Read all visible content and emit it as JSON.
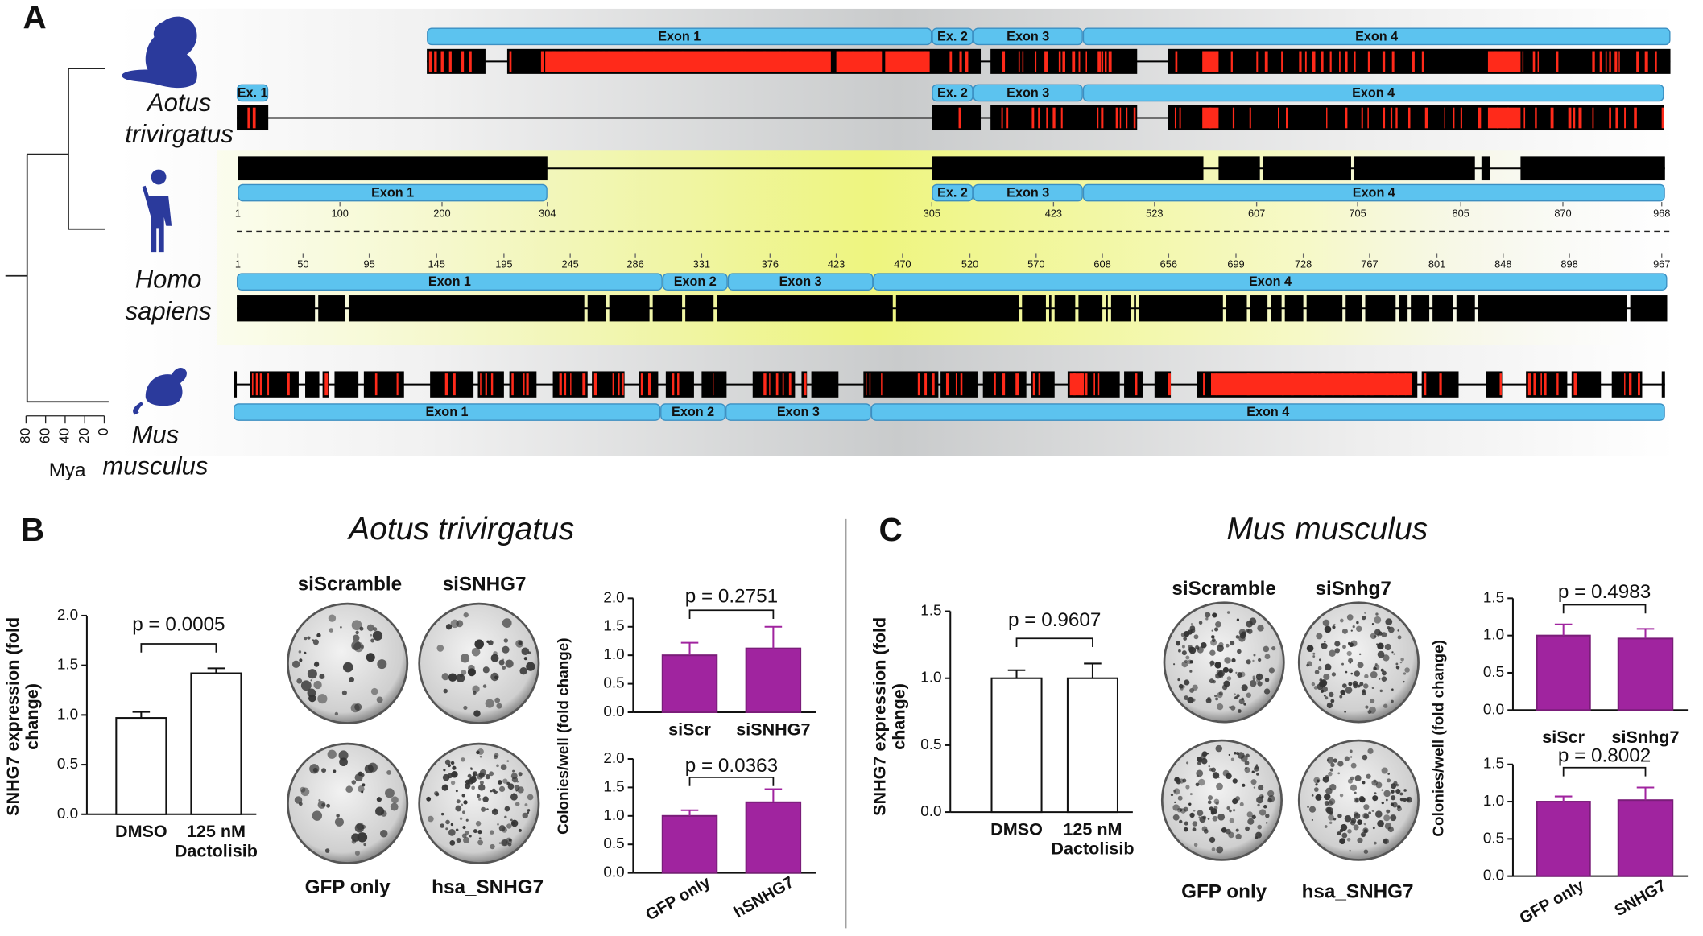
{
  "panel_labels": [
    "A",
    "B",
    "C"
  ],
  "panel_A": {
    "species": [
      [
        "Aotus",
        "trivirgatus"
      ],
      [
        "Homo",
        "sapiens"
      ],
      [
        "Mus",
        "musculus"
      ]
    ],
    "tracks": [
      {
        "exons": [
          "Exon 1",
          "Ex. 2",
          "Exon 3",
          "Exon 4"
        ]
      },
      {
        "exons": [
          "Ex. 1",
          "Ex. 2",
          "Exon 3",
          "Exon 4"
        ]
      },
      {
        "exons": [
          "Exon 1",
          "Ex. 2",
          "Exon 3",
          "Exon 4"
        ],
        "ruler": [
          1,
          100,
          200,
          304,
          305,
          423,
          523,
          607,
          705,
          805,
          870,
          968
        ]
      },
      {
        "exons": [
          "Exon 1",
          "Exon 2",
          "Exon 3",
          "Exon 4"
        ],
        "ruler": [
          1,
          50,
          95,
          145,
          195,
          245,
          286,
          331,
          376,
          423,
          470,
          520,
          570,
          608,
          656,
          699,
          728,
          767,
          801,
          848,
          898,
          967
        ]
      },
      {
        "exons": [
          "Exon 1",
          "Exon 2",
          "Exon 3",
          "Exon 4"
        ]
      }
    ],
    "timescale": {
      "ticks": [
        80,
        60,
        40,
        20,
        0
      ],
      "label": "Mya"
    }
  },
  "panel_B": {
    "title": "Aotus trivirgatus",
    "plates": [
      "siScramble",
      "siSNHG7",
      "GFP only",
      "hsa_SNHG7"
    ]
  },
  "panel_C": {
    "title": "Mus musculus",
    "plates": [
      "siScramble",
      "siSnhg7",
      "GFP only",
      "hsa_SNHG7"
    ]
  },
  "chart_data": [
    {
      "type": "bar",
      "annotation": "p = 0.0005",
      "ylabel": "SNHG7 expression (fold change)",
      "categories": [
        "DMSO",
        "125 nM Dactolisib"
      ],
      "values": [
        0.97,
        1.42
      ],
      "errors": [
        0.06,
        0.05
      ],
      "color": "#ffffff",
      "ylim": [
        0,
        2
      ],
      "yticks": [
        {
          "value": 0,
          "label": "0.0"
        },
        0.5,
        {
          "value": 1,
          "label": "1.0"
        },
        1.5,
        {
          "value": 2,
          "label": "2.0"
        }
      ]
    },
    {
      "type": "bar",
      "annotation": "p = 0.2751",
      "ylabel": "Colonies/well (fold change)",
      "categories": [
        "siScr",
        "siSNHG7"
      ],
      "values": [
        1.0,
        1.12
      ],
      "errors": [
        0.22,
        0.38
      ],
      "color": "#a0249f",
      "ylim": [
        0,
        2
      ],
      "yticks": [
        {
          "value": 0,
          "label": "0.0"
        },
        0.5,
        {
          "value": 1,
          "label": "1.0"
        },
        1.5,
        {
          "value": 2,
          "label": "2.0"
        }
      ]
    },
    {
      "type": "bar",
      "annotation": "p = 0.0363",
      "categories": [
        "GFP only",
        "hSNHG7"
      ],
      "values": [
        1.0,
        1.24
      ],
      "errors": [
        0.1,
        0.23
      ],
      "color": "#a0249f",
      "ylim": [
        0,
        2
      ],
      "yticks": [
        {
          "value": 0,
          "label": "0.0"
        },
        0.5,
        {
          "value": 1,
          "label": "1.0"
        },
        1.5,
        {
          "value": 2,
          "label": "2.0"
        }
      ]
    },
    {
      "type": "bar",
      "annotation": "p = 0.9607",
      "ylabel": "SNHG7 expression (fold change)",
      "categories": [
        "DMSO",
        "125 nM Dactolisib"
      ],
      "values": [
        1.0,
        1.0
      ],
      "errors": [
        0.06,
        0.11
      ],
      "color": "#ffffff",
      "ylim": [
        0,
        1.5
      ],
      "yticks": [
        {
          "value": 0,
          "label": "0.0"
        },
        0.5,
        {
          "value": 1,
          "label": "1.0"
        },
        1.5
      ]
    },
    {
      "type": "bar",
      "annotation": "p = 0.4983",
      "ylabel": "Colonies/well (fold change)",
      "categories": [
        "siScr",
        "siSnhg7"
      ],
      "values": [
        1.0,
        0.96
      ],
      "errors": [
        0.15,
        0.13
      ],
      "color": "#a0249f",
      "ylim": [
        0,
        1.5
      ],
      "yticks": [
        {
          "value": 0,
          "label": "0.0"
        },
        0.5,
        {
          "value": 1,
          "label": "1.0"
        },
        1.5
      ]
    },
    {
      "type": "bar",
      "annotation": "p = 0.8002",
      "categories": [
        "GFP only",
        "SNHG7"
      ],
      "values": [
        1.0,
        1.02
      ],
      "errors": [
        0.07,
        0.17
      ],
      "color": "#a0249f",
      "ylim": [
        0,
        1.5
      ],
      "yticks": [
        {
          "value": 0,
          "label": "0.0"
        },
        0.5,
        {
          "value": 1,
          "label": "1.0"
        },
        1.5
      ]
    }
  ]
}
